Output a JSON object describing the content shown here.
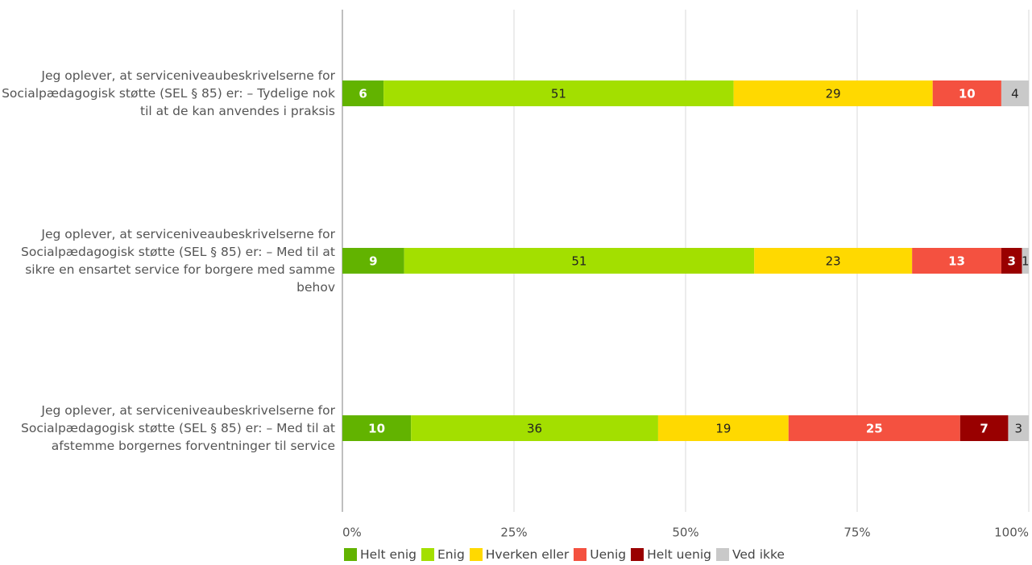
{
  "chart_data": {
    "type": "stacked_barh",
    "categories": [
      "Jeg oplever, at serviceniveaubeskrivelserne for Socialpædagogisk støtte (SEL § 85) er: – Tydelige nok til at de kan anvendes i praksis",
      "Jeg oplever, at serviceniveaubeskrivelserne for Socialpædagogisk støtte (SEL § 85) er: – Med til at sikre en ensartet service for borgere med samme behov",
      "Jeg oplever, at serviceniveaubeskrivelserne for Socialpædagogisk støtte (SEL § 85) er: – Med til at afstemme borgernes forventninger til service"
    ],
    "series": [
      {
        "name": "Helt enig",
        "color": "#62b300",
        "values": [
          6,
          9,
          10
        ]
      },
      {
        "name": "Enig",
        "color": "#a3df00",
        "values": [
          51,
          51,
          36
        ]
      },
      {
        "name": "Hverken eller",
        "color": "#ffd900",
        "values": [
          29,
          23,
          19
        ]
      },
      {
        "name": "Uenig",
        "color": "#f45140",
        "values": [
          10,
          13,
          25
        ]
      },
      {
        "name": "Helt uenig",
        "color": "#990000",
        "values": [
          0,
          3,
          7
        ]
      },
      {
        "name": "Ved ikke",
        "color": "#c9c9c9",
        "values": [
          4,
          1,
          3
        ]
      }
    ],
    "xlim": [
      0,
      100
    ],
    "xticks": [
      {
        "value": 0,
        "label": "0%"
      },
      {
        "value": 25,
        "label": "25%"
      },
      {
        "value": 50,
        "label": "50%"
      },
      {
        "value": 75,
        "label": "75%"
      },
      {
        "value": 100,
        "label": "100%"
      }
    ],
    "grid": true,
    "legend": "bottom"
  }
}
